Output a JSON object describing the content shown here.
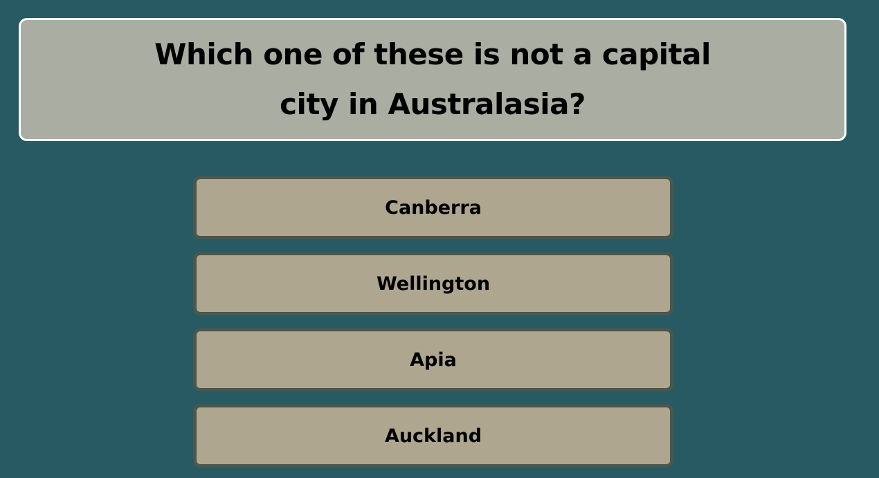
{
  "question": {
    "part1": "Which ",
    "part2": "one",
    "part3": " of these is ",
    "part4": "not",
    "part5": " a capital city in Australasia?"
  },
  "answers": [
    {
      "label": "Canberra"
    },
    {
      "label": "Wellington"
    },
    {
      "label": "Apia"
    },
    {
      "label": "Auckland"
    }
  ],
  "colors": {
    "background": "#275a63",
    "question_card": "#a9ada2",
    "question_border": "#ffffff",
    "answer_fill": "#aea68f",
    "answer_border": "#48574f"
  }
}
